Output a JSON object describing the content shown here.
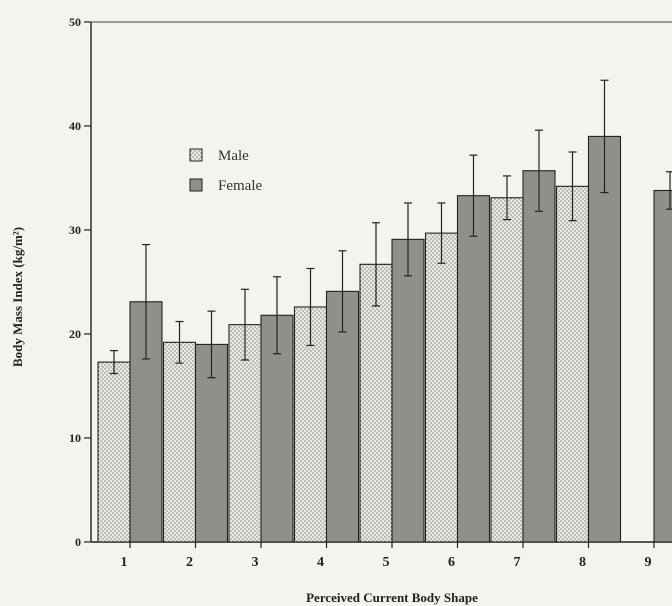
{
  "chart_data": {
    "type": "bar",
    "xlabel": "Perceived Current Body Shape",
    "ylabel": "Body Mass Index (kg/m²)",
    "ylim": [
      0,
      50
    ],
    "y_ticks": [
      "0",
      "10",
      "20",
      "30",
      "40",
      "50"
    ],
    "categories": [
      "1",
      "2",
      "3",
      "4",
      "5",
      "6",
      "7",
      "8",
      "9"
    ],
    "series": [
      {
        "name": "Male",
        "values": [
          17.3,
          19.2,
          20.9,
          22.6,
          26.7,
          29.7,
          33.1,
          34.2,
          null
        ],
        "error": [
          1.1,
          2.0,
          3.4,
          3.7,
          4.0,
          2.9,
          2.1,
          3.3,
          null
        ],
        "color": "#e6e5e0"
      },
      {
        "name": "Female",
        "values": [
          23.1,
          19.0,
          21.8,
          24.1,
          29.1,
          33.3,
          35.7,
          39.0,
          33.8
        ],
        "error": [
          5.5,
          3.2,
          3.7,
          3.9,
          3.5,
          3.9,
          3.9,
          5.4,
          1.8
        ],
        "color": "#8f8f8c"
      }
    ],
    "grid": false,
    "legend_position": "upper-left"
  }
}
